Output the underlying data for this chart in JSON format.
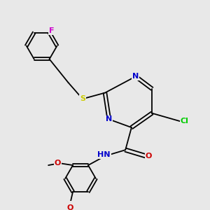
{
  "background_color": "#e8e8e8",
  "atom_colors": {
    "N": "#0000cc",
    "O": "#cc0000",
    "S": "#cccc00",
    "Cl": "#00cc00",
    "F": "#cc00cc",
    "H": "#555555"
  },
  "bond_lw": 1.3,
  "font_size": 8,
  "dbl_off": 0.05
}
